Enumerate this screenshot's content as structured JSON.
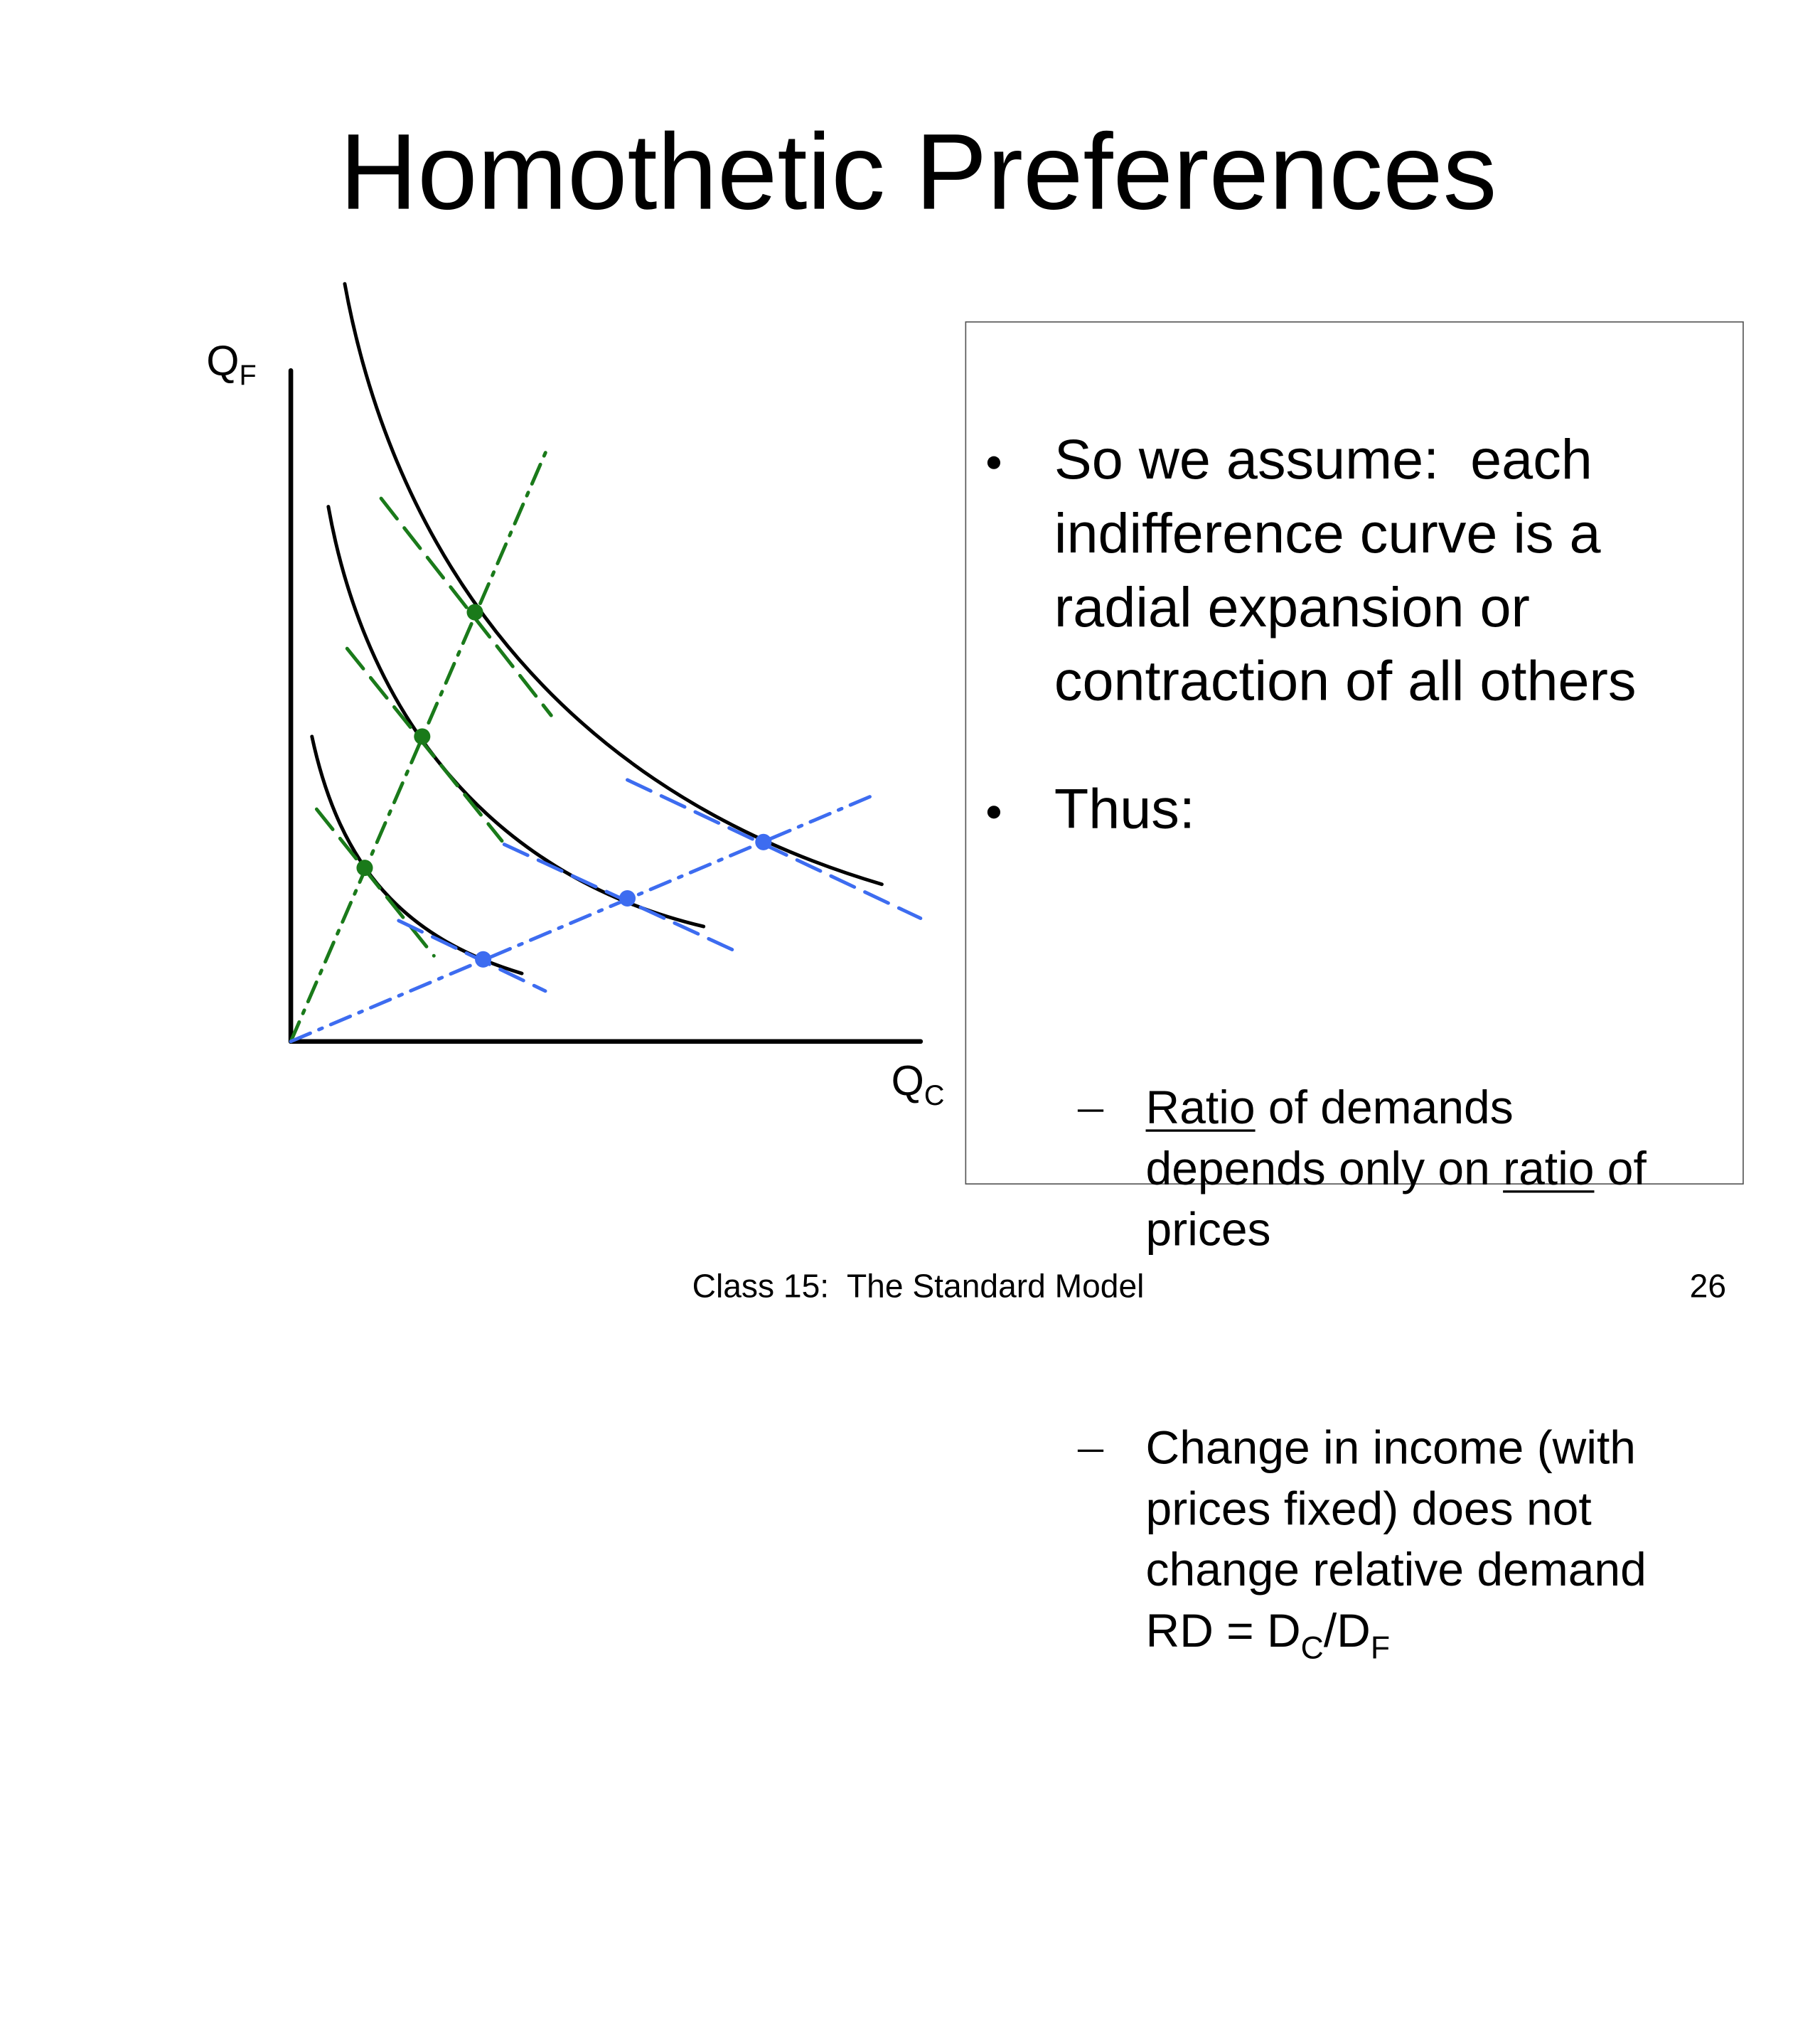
{
  "header": {
    "title": "Homothetic Preferences"
  },
  "diagram": {
    "y_axis": {
      "label": "Q",
      "subscript": "F"
    },
    "x_axis": {
      "label": "Q",
      "subscript": "C"
    }
  },
  "textbox": {
    "bullets": [
      {
        "text": "So we assume:  each indifference curve is a radial expansion or contraction of all others"
      },
      {
        "text": "Thus:",
        "sub": [
          {
            "parts": [
              "Ratio",
              " of demands depends only on ",
              "ratio",
              " of prices"
            ]
          },
          {
            "parts": [
              "Change in income (with prices fixed) does not change relative demand RD = D",
              "C",
              "/D",
              "F"
            ]
          }
        ]
      }
    ]
  },
  "footer": {
    "text": "Class 15:  The Standard Model",
    "page": "26"
  }
}
